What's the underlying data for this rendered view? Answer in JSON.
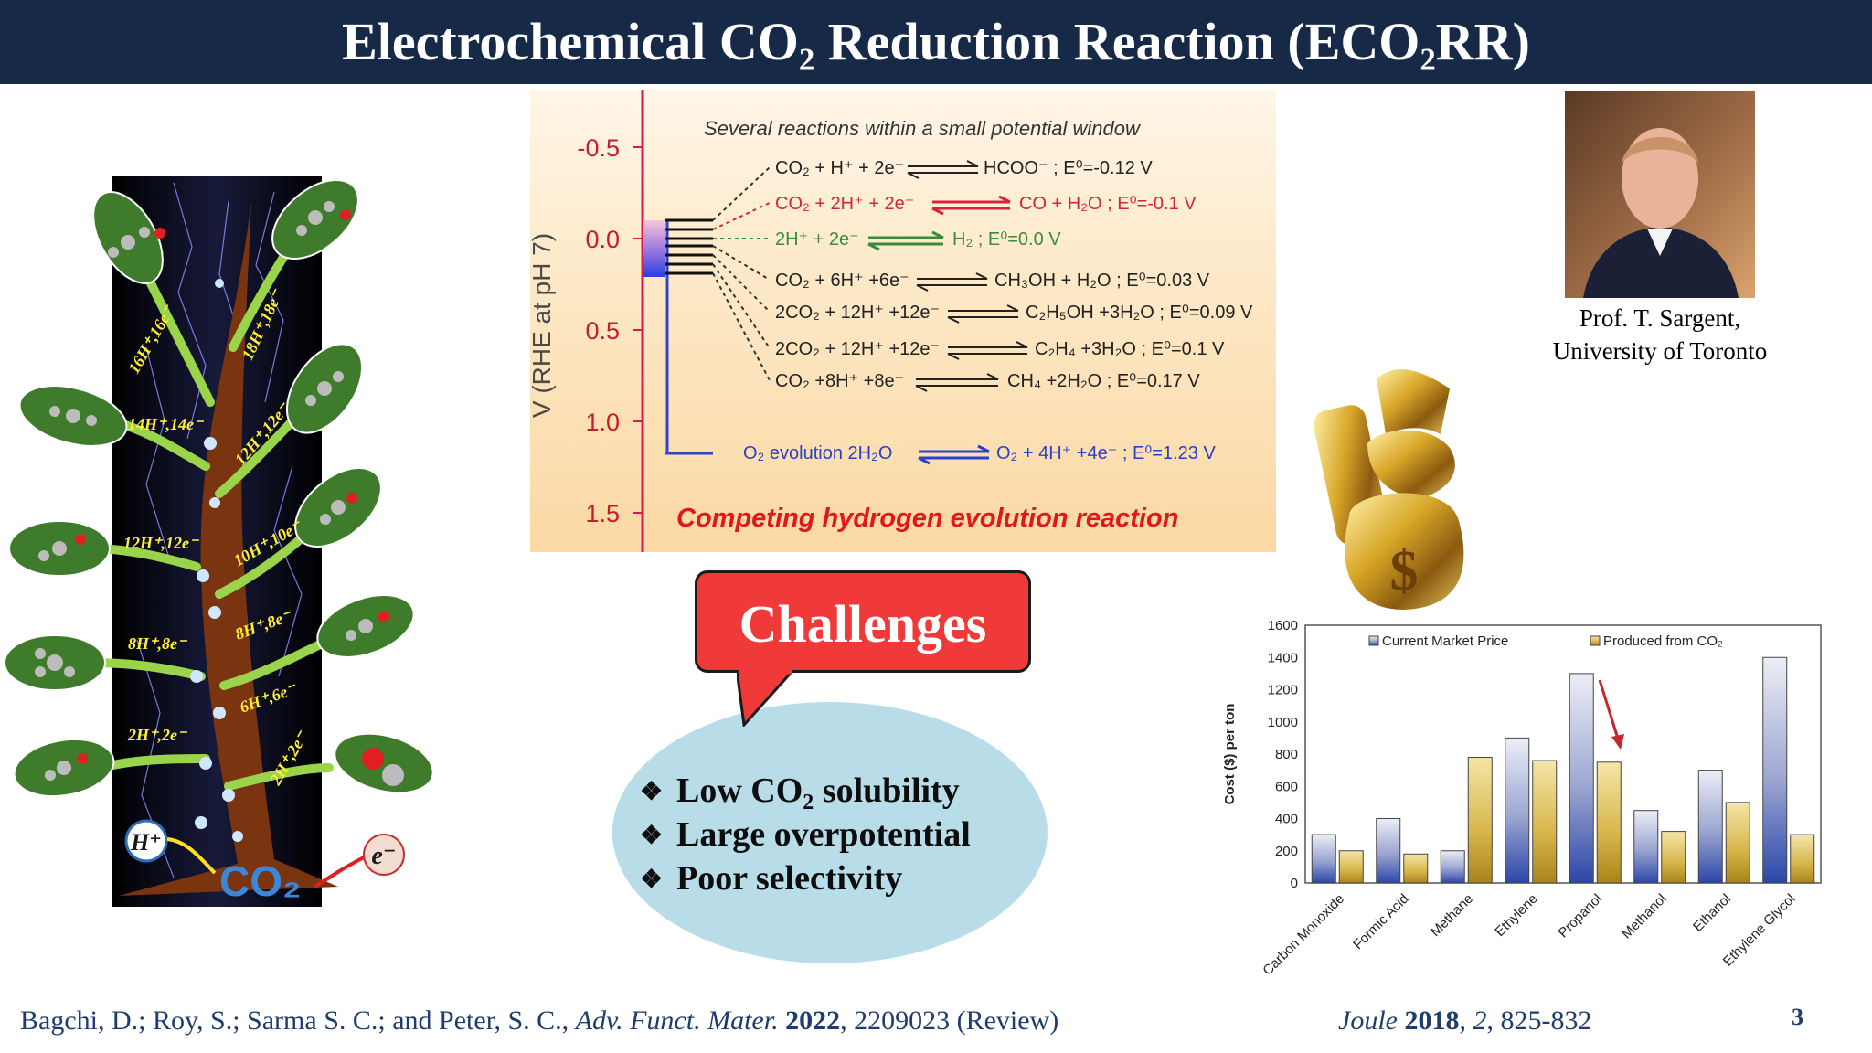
{
  "slide": {
    "title": "Electrochemical CO₂ Reduction Reaction (ECO₂RR)",
    "page_number": "3"
  },
  "tree": {
    "leaf_labels": [
      "16H⁺,16e⁻",
      "18H⁺,18e⁻",
      "14H⁺,14e⁻",
      "12H⁺,12e⁻",
      "12H⁺,12e⁻",
      "10H⁺,10e⁻",
      "8H⁺,8e⁻",
      "8H⁺,8e⁻",
      "6H⁺,6e⁻",
      "2H⁺,2e⁻",
      "2H⁺,2e⁻"
    ],
    "h_plus": "H⁺",
    "e_minus": "e⁻",
    "co2": "CO₂"
  },
  "potential_figure": {
    "header": "Several reactions within a small potential window",
    "y_axis_label": "V (RHE at pH 7)",
    "y_ticks": [
      "-0.5",
      "0.0",
      "0.5",
      "1.0",
      "1.5"
    ],
    "reactions": [
      {
        "left": "CO₂ + H⁺ + 2e⁻",
        "right": "HCOO⁻ ; E⁰=-0.12 V",
        "color": "#222222"
      },
      {
        "left": "CO₂ + 2H⁺ + 2e⁻",
        "right": "CO + H₂O ; E⁰=-0.1 V",
        "color": "#d8243a"
      },
      {
        "left": "2H⁺ + 2e⁻",
        "right": "H₂ ; E⁰=0.0 V",
        "color": "#3c8b3c"
      },
      {
        "left": "CO₂ + 6H⁺ +6e⁻",
        "right": "CH₃OH + H₂O ; E⁰=0.03 V",
        "color": "#222222"
      },
      {
        "left": "2CO₂ + 12H⁺ +12e⁻",
        "right": "C₂H₅OH +3H₂O ; E⁰=0.09 V",
        "color": "#222222"
      },
      {
        "left": "2CO₂ + 12H⁺ +12e⁻",
        "right": "C₂H₄ +3H₂O ; E⁰=0.1 V",
        "color": "#222222"
      },
      {
        "left": "CO₂ +8H⁺ +8e⁻",
        "right": "CH₄ +2H₂O ; E⁰=0.17 V",
        "color": "#222222"
      }
    ],
    "o2_left": "O₂ evolution 2H₂O",
    "o2_right": "O₂ + 4H⁺ +4e⁻ ; E⁰=1.23 V",
    "footer": "Competing hydrogen evolution reaction"
  },
  "sargent": {
    "name": "Prof. T. Sargent,",
    "affiliation": "University of Toronto"
  },
  "challenges": {
    "heading": "Challenges",
    "bullet_symbol": "❖",
    "items": [
      {
        "text": "Low CO",
        "sub": "2",
        "tail": " solubility"
      },
      {
        "text": "Large overpotential",
        "sub": "",
        "tail": ""
      },
      {
        "text": "Poor selectivity",
        "sub": "",
        "tail": ""
      }
    ]
  },
  "chart_data": {
    "type": "bar",
    "categories": [
      "Carbon Monoxide",
      "Formic Acid",
      "Methane",
      "Ethylene",
      "Propanol",
      "Methanol",
      "Ethanol",
      "Ethylene Glycol"
    ],
    "series": [
      {
        "name": "Current Market Price",
        "values": [
          300,
          400,
          200,
          900,
          1300,
          450,
          700,
          1400
        ]
      },
      {
        "name": "Produced from CO₂",
        "values": [
          200,
          180,
          780,
          760,
          750,
          320,
          500,
          300
        ]
      }
    ],
    "ylabel": "Cost ($) per ton",
    "ylim": [
      0,
      1600
    ],
    "yticks": [
      0,
      200,
      400,
      600,
      800,
      1000,
      1200,
      1400,
      1600
    ],
    "legend_position": "top",
    "annotation": "red arrow pointing to Propanol produced from CO₂"
  },
  "references": {
    "authors": "Bagchi, D.; Roy, S.; Sarma S. C.; and Peter, S. C., ",
    "journal": "Adv. Funct. Mater.",
    "year": "2022",
    "rest": ", 2209023 (Review)",
    "joule_journal": "Joule",
    "joule_year": "2018",
    "joule_volume": "2",
    "joule_pages": ", 825-832"
  }
}
